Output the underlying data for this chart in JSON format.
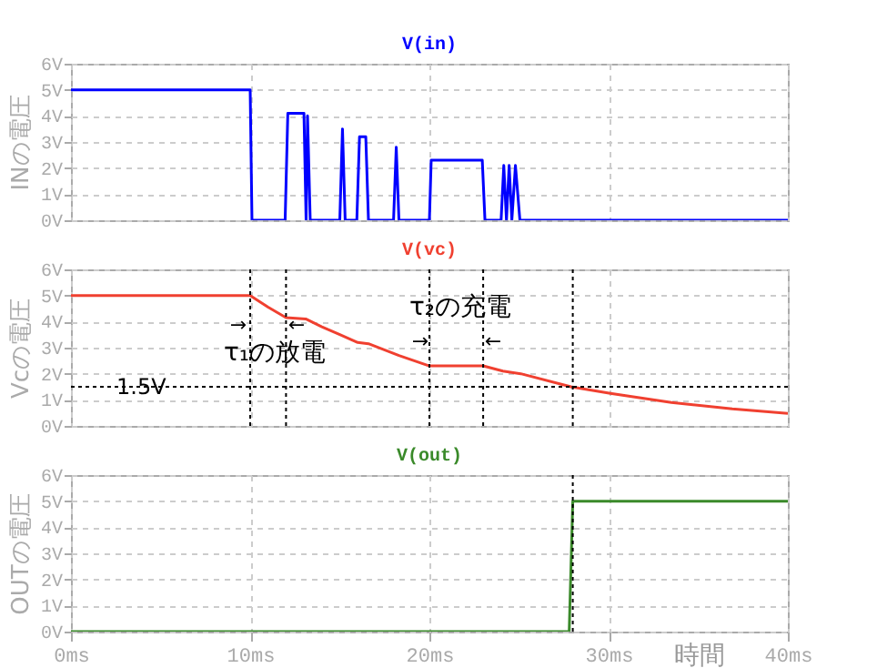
{
  "chart_data": [
    {
      "type": "line",
      "ylabel": "INの電圧",
      "xlim": [
        0,
        40
      ],
      "xticks": [
        0,
        10,
        20,
        30,
        40
      ],
      "ylim": [
        0,
        6
      ],
      "yticks": [
        {
          "value": 0,
          "label": "0V"
        },
        {
          "value": 1,
          "label": "1V"
        },
        {
          "value": 2,
          "label": "2V"
        },
        {
          "value": 3,
          "label": "3V"
        },
        {
          "value": 4,
          "label": "4V"
        },
        {
          "value": 5,
          "label": "5V"
        },
        {
          "value": 6,
          "label": "6V"
        }
      ],
      "grid": true,
      "tick_labels": "y",
      "series": [
        {
          "name": "V(in)",
          "color": "#0000ff",
          "x": [
            0,
            10.0,
            10.1,
            11.95,
            12.1,
            13.0,
            13.12,
            13.2,
            13.35,
            15.0,
            15.15,
            15.3,
            15.95,
            16.1,
            16.45,
            16.6,
            18.0,
            18.15,
            18.3,
            20.0,
            20.1,
            22.95,
            23.1,
            24.0,
            24.15,
            24.3,
            24.45,
            24.6,
            24.8,
            25.05,
            40
          ],
          "values": [
            5,
            5,
            0,
            0,
            4.1,
            4.1,
            0,
            4.0,
            0,
            0,
            3.5,
            0,
            0,
            3.2,
            3.2,
            0,
            0,
            2.8,
            0,
            0,
            2.3,
            2.3,
            0,
            0,
            2.1,
            0,
            2.1,
            0,
            2.1,
            0,
            0
          ]
        }
      ]
    },
    {
      "type": "line",
      "ylabel": "Vcの電圧",
      "xlim": [
        0,
        40
      ],
      "xticks": [
        0,
        10,
        20,
        30,
        40
      ],
      "ylim": [
        0,
        6
      ],
      "yticks": [
        {
          "value": 0,
          "label": "0V"
        },
        {
          "value": 1,
          "label": "1V"
        },
        {
          "value": 2,
          "label": "2V"
        },
        {
          "value": 3,
          "label": "3V"
        },
        {
          "value": 4,
          "label": "4V"
        },
        {
          "value": 5,
          "label": "5V"
        },
        {
          "value": 6,
          "label": "6V"
        }
      ],
      "grid": true,
      "tick_labels": "y",
      "series": [
        {
          "name": "V(vc)",
          "color": "#f04030",
          "x": [
            0,
            10.0,
            11.0,
            12.0,
            13.1,
            14.0,
            15.0,
            16.0,
            16.6,
            18.3,
            20.0,
            23.0,
            24.1,
            25.1,
            27.9,
            30.1,
            33.5,
            36.9,
            40
          ],
          "values": [
            5,
            5,
            4.55,
            4.15,
            4.1,
            3.8,
            3.5,
            3.2,
            3.15,
            2.7,
            2.3,
            2.3,
            2.1,
            2.0,
            1.5,
            1.25,
            0.9,
            0.65,
            0.48
          ]
        }
      ],
      "ref_lines": [
        {
          "axis": "y",
          "value": 1.5,
          "label": "1.5V",
          "line_style": "dotted"
        },
        {
          "axis": "x",
          "value": 28,
          "line_style": "dotted"
        },
        {
          "axis": "x",
          "value": 10,
          "line_style": "dotted"
        },
        {
          "axis": "x",
          "value": 12,
          "line_style": "dotted"
        },
        {
          "axis": "x",
          "value": 20,
          "line_style": "dotted"
        },
        {
          "axis": "x",
          "value": 23,
          "line_style": "dotted"
        }
      ],
      "annotations": [
        "τ₁の放電",
        "τ₂の充電",
        "→",
        "←",
        "→",
        "←"
      ]
    },
    {
      "type": "line",
      "ylabel": "OUTの電圧",
      "xlabel": "時間",
      "xlim": [
        0,
        40
      ],
      "xticks": [
        {
          "value": 0,
          "label": "0ms"
        },
        {
          "value": 10,
          "label": "10ms"
        },
        {
          "value": 20,
          "label": "20ms"
        },
        {
          "value": 30,
          "label": "30ms"
        },
        {
          "value": 40,
          "label": "40ms"
        }
      ],
      "ylim": [
        0,
        6
      ],
      "yticks": [
        {
          "value": 0,
          "label": "0V"
        },
        {
          "value": 1,
          "label": "1V"
        },
        {
          "value": 2,
          "label": "2V"
        },
        {
          "value": 3,
          "label": "3V"
        },
        {
          "value": 4,
          "label": "4V"
        },
        {
          "value": 5,
          "label": "5V"
        },
        {
          "value": 6,
          "label": "6V"
        }
      ],
      "grid": true,
      "series": [
        {
          "name": "V(out)",
          "color": "#3a8a2a",
          "x": [
            0,
            27.8,
            28.0,
            40
          ],
          "values": [
            0,
            0,
            5,
            5
          ]
        }
      ],
      "ref_lines": [
        {
          "axis": "x",
          "value": 28,
          "line_style": "dotted"
        }
      ]
    }
  ]
}
